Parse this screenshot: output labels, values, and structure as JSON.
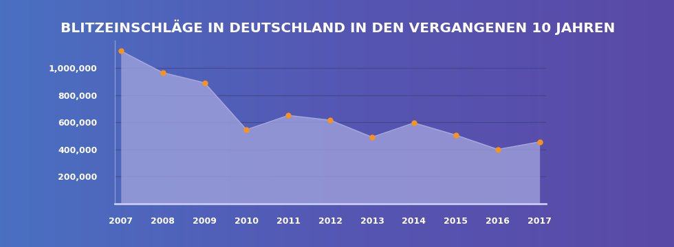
{
  "chart_data": {
    "type": "area",
    "title": "BLITZEINSCHLÄGE IN DEUTSCHLAND IN DEN VERGANGENEN 10 JAHREN",
    "categories": [
      "2007",
      "2008",
      "2009",
      "2010",
      "2011",
      "2012",
      "2013",
      "2014",
      "2015",
      "2016",
      "2017"
    ],
    "values": [
      1125000,
      965000,
      890000,
      545000,
      650000,
      615000,
      490000,
      595000,
      505000,
      400000,
      455000
    ],
    "color": "#a4a6de",
    "marker": "o",
    "ylim": [
      0,
      1200000
    ],
    "yticks": [
      {
        "value": 200000,
        "label": "200,000"
      },
      {
        "value": 400000,
        "label": "400,000"
      },
      {
        "value": 600000,
        "label": "600,000"
      },
      {
        "value": 800000,
        "label": "800,000"
      },
      {
        "value": 1000000,
        "label": "1,000,000"
      }
    ],
    "grid": true
  }
}
